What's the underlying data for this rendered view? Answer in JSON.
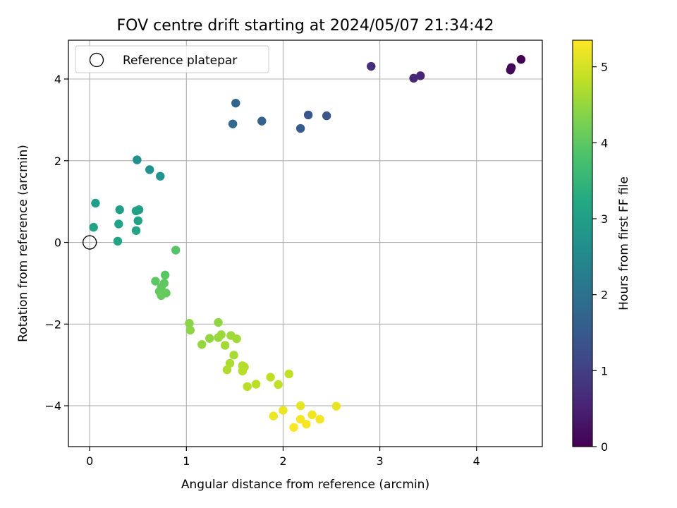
{
  "chart_data": {
    "type": "scatter",
    "title": "FOV centre drift starting at 2024/05/07 21:34:42",
    "xlabel": "Angular distance from reference (arcmin)",
    "ylabel": "Rotation from reference (arcmin)",
    "xlim": [
      -0.22,
      4.68
    ],
    "ylim": [
      -5.0,
      4.95
    ],
    "xticks": [
      0,
      1,
      2,
      3,
      4
    ],
    "yticks": [
      -4,
      -2,
      0,
      2,
      4
    ],
    "grid": true,
    "legend": {
      "placement": "top-left",
      "entries": [
        {
          "label": "Reference platepar",
          "marker": "open-circle",
          "color": "#000000",
          "x": 0.0,
          "y": 0.0
        }
      ]
    },
    "colorbar": {
      "label": "Hours from first FF file",
      "colormap": "viridis",
      "range": [
        0,
        5.35
      ],
      "ticks": [
        0,
        1,
        2,
        3,
        4,
        5
      ]
    },
    "series": [
      {
        "points": [
          {
            "x": 4.46,
            "y": 4.48,
            "c": 0.0
          },
          {
            "x": 4.36,
            "y": 4.28,
            "c": 0.05
          },
          {
            "x": 4.35,
            "y": 4.22,
            "c": 0.1
          },
          {
            "x": 3.42,
            "y": 4.08,
            "c": 0.55
          },
          {
            "x": 3.35,
            "y": 4.02,
            "c": 0.6
          },
          {
            "x": 2.91,
            "y": 4.31,
            "c": 0.7
          },
          {
            "x": 2.45,
            "y": 3.1,
            "c": 1.4
          },
          {
            "x": 2.26,
            "y": 3.12,
            "c": 1.45
          },
          {
            "x": 2.18,
            "y": 2.79,
            "c": 1.55
          },
          {
            "x": 1.78,
            "y": 2.97,
            "c": 1.65
          },
          {
            "x": 1.51,
            "y": 3.41,
            "c": 1.75
          },
          {
            "x": 1.48,
            "y": 2.9,
            "c": 1.8
          },
          {
            "x": 0.49,
            "y": 2.02,
            "c": 2.65
          },
          {
            "x": 0.62,
            "y": 1.78,
            "c": 2.7
          },
          {
            "x": 0.73,
            "y": 1.62,
            "c": 2.75
          },
          {
            "x": 0.06,
            "y": 0.96,
            "c": 2.95
          },
          {
            "x": 0.31,
            "y": 0.8,
            "c": 2.98
          },
          {
            "x": 0.48,
            "y": 0.77,
            "c": 3.0
          },
          {
            "x": 0.51,
            "y": 0.8,
            "c": 3.02
          },
          {
            "x": 0.5,
            "y": 0.53,
            "c": 3.05
          },
          {
            "x": 0.3,
            "y": 0.45,
            "c": 3.08
          },
          {
            "x": 0.04,
            "y": 0.37,
            "c": 3.1
          },
          {
            "x": 0.48,
            "y": 0.29,
            "c": 3.12
          },
          {
            "x": 0.29,
            "y": 0.03,
            "c": 3.15
          },
          {
            "x": 0.89,
            "y": -0.19,
            "c": 3.9
          },
          {
            "x": 0.78,
            "y": -0.8,
            "c": 3.95
          },
          {
            "x": 0.68,
            "y": -0.95,
            "c": 3.98
          },
          {
            "x": 0.77,
            "y": -1.0,
            "c": 4.0
          },
          {
            "x": 0.74,
            "y": -1.1,
            "c": 4.02
          },
          {
            "x": 0.72,
            "y": -1.2,
            "c": 4.04
          },
          {
            "x": 0.79,
            "y": -1.24,
            "c": 4.06
          },
          {
            "x": 0.74,
            "y": -1.3,
            "c": 4.08
          },
          {
            "x": 1.03,
            "y": -1.98,
            "c": 4.4
          },
          {
            "x": 1.04,
            "y": -2.15,
            "c": 4.42
          },
          {
            "x": 1.33,
            "y": -1.96,
            "c": 4.45
          },
          {
            "x": 1.24,
            "y": -2.35,
            "c": 4.48
          },
          {
            "x": 1.16,
            "y": -2.5,
            "c": 4.5
          },
          {
            "x": 1.33,
            "y": -2.33,
            "c": 4.52
          },
          {
            "x": 1.36,
            "y": -2.26,
            "c": 4.55
          },
          {
            "x": 1.46,
            "y": -2.28,
            "c": 4.57
          },
          {
            "x": 1.52,
            "y": -2.36,
            "c": 4.6
          },
          {
            "x": 1.4,
            "y": -2.52,
            "c": 4.62
          },
          {
            "x": 1.49,
            "y": -2.76,
            "c": 4.65
          },
          {
            "x": 1.45,
            "y": -2.96,
            "c": 4.68
          },
          {
            "x": 1.42,
            "y": -3.12,
            "c": 4.7
          },
          {
            "x": 1.58,
            "y": -3.02,
            "c": 4.72
          },
          {
            "x": 1.6,
            "y": -3.05,
            "c": 4.74
          },
          {
            "x": 1.58,
            "y": -3.15,
            "c": 4.76
          },
          {
            "x": 1.63,
            "y": -3.53,
            "c": 4.78
          },
          {
            "x": 1.72,
            "y": -3.47,
            "c": 4.8
          },
          {
            "x": 1.87,
            "y": -3.3,
            "c": 4.82
          },
          {
            "x": 1.95,
            "y": -3.48,
            "c": 4.84
          },
          {
            "x": 2.06,
            "y": -3.22,
            "c": 4.86
          },
          {
            "x": 2.18,
            "y": -4.0,
            "c": 5.15
          },
          {
            "x": 2.55,
            "y": -4.01,
            "c": 5.18
          },
          {
            "x": 2.0,
            "y": -4.11,
            "c": 5.2
          },
          {
            "x": 1.9,
            "y": -4.25,
            "c": 5.22
          },
          {
            "x": 2.3,
            "y": -4.22,
            "c": 5.24
          },
          {
            "x": 2.18,
            "y": -4.33,
            "c": 5.26
          },
          {
            "x": 2.38,
            "y": -4.33,
            "c": 5.28
          },
          {
            "x": 2.24,
            "y": -4.45,
            "c": 5.3
          },
          {
            "x": 2.11,
            "y": -4.53,
            "c": 5.32
          }
        ]
      }
    ]
  }
}
